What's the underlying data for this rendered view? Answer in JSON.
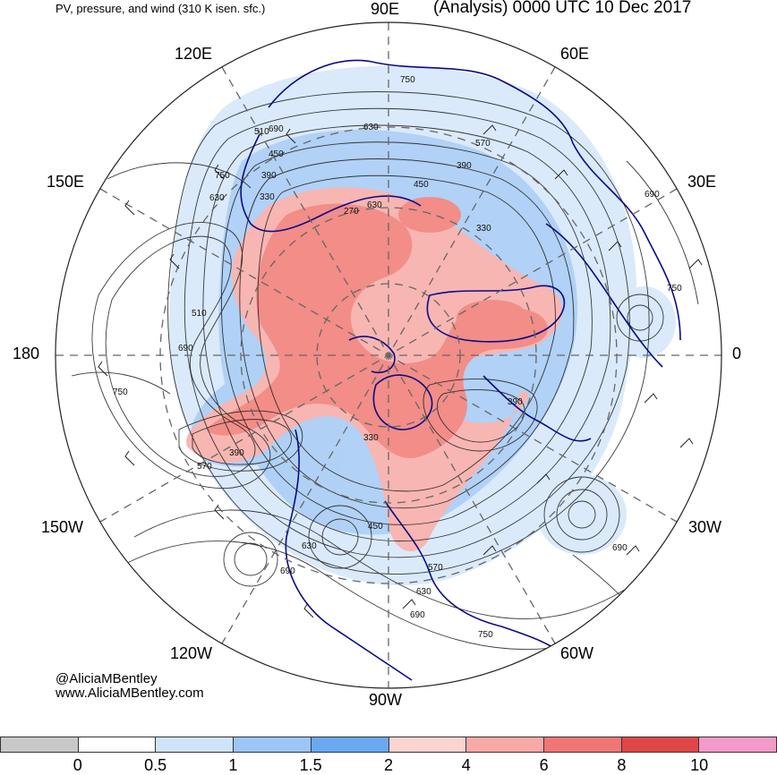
{
  "header": {
    "title_left": "PV, pressure, and wind (310 K isen. sfc.)",
    "title_right": "(Analysis) 0000 UTC 10 Dec 2017"
  },
  "longitude_labels": {
    "lon_90e": "90E",
    "lon_60e": "60E",
    "lon_120e": "120E",
    "lon_30e": "30E",
    "lon_150e": "150E",
    "lon_0": "0",
    "lon_180": "180",
    "lon_30w": "30W",
    "lon_150w": "150W",
    "lon_60w": "60W",
    "lon_120w": "120W",
    "lon_90w": "90W"
  },
  "credits": {
    "handle": "@AliciaMBentley",
    "website": "www.AliciaMBentley.com"
  },
  "colorbar": {
    "colors": [
      "#c8c8c8",
      "#ffffff",
      "#cfe3fb",
      "#9cc6f7",
      "#6aa9f0",
      "#fbd4d0",
      "#f7a9a5",
      "#f07676",
      "#e04646",
      "#f29ac8"
    ],
    "ticks": [
      "0",
      "0.5",
      "1",
      "1.5",
      "2",
      "4",
      "6",
      "8",
      "10"
    ]
  },
  "contour_labels": [
    "750",
    "630",
    "570",
    "510",
    "450",
    "390",
    "330",
    "270",
    "690",
    "750",
    "630",
    "510",
    "690",
    "750",
    "570",
    "390",
    "330",
    "450",
    "630",
    "690",
    "570",
    "630",
    "690",
    "750",
    "690",
    "390",
    "330",
    "750",
    "450",
    "630",
    "690",
    "390"
  ],
  "map_colors": {
    "coast": "#0a0a8a",
    "pv_high": "#f29a96",
    "pv_high_core": "#f27777",
    "pv_low": "#a9cdf5",
    "pv_lowest": "#d6e8fb",
    "contour": "#1a1a1a",
    "grid": "#666666"
  }
}
